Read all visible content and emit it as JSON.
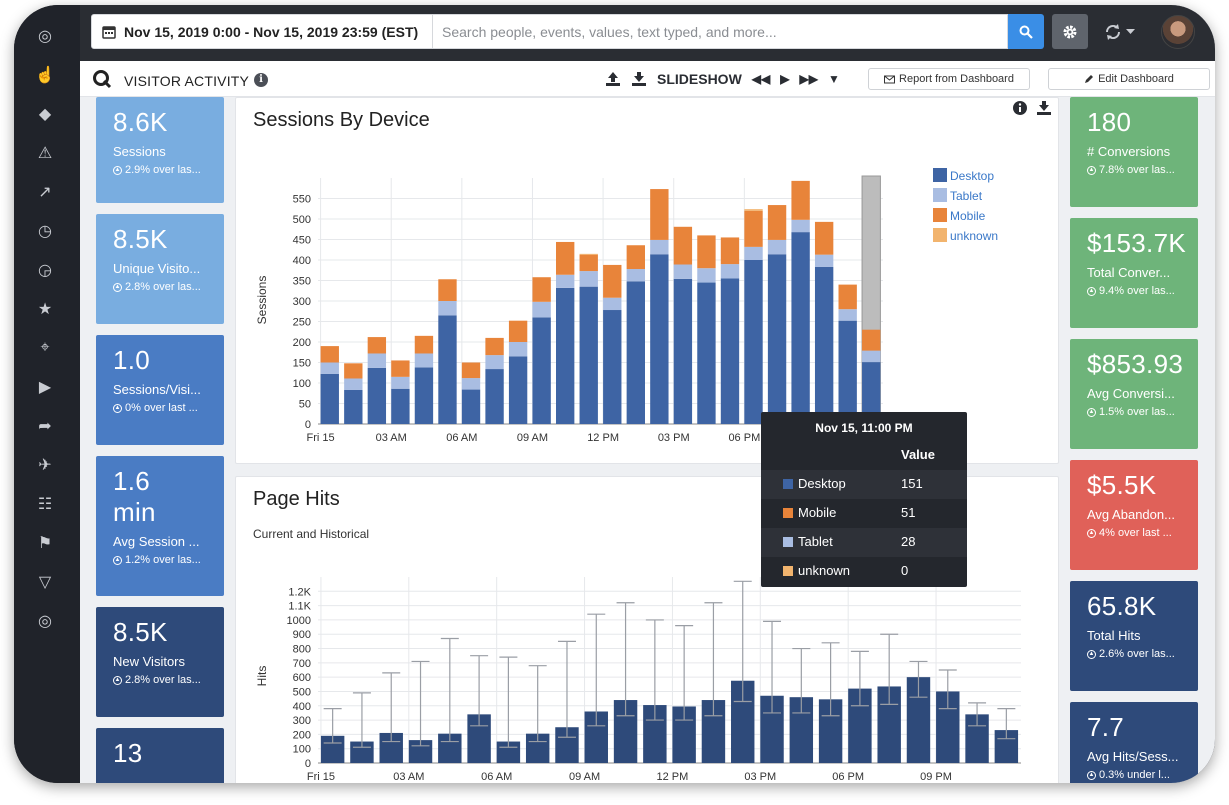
{
  "topbar": {
    "date_range": "Nov 15, 2019 0:00 - Nov 15, 2019 23:59 (EST)",
    "search_placeholder": "Search people, events, values, text typed, and more..."
  },
  "header": {
    "title": "VISITOR ACTIVITY",
    "slideshow_label": "SLIDESHOW",
    "report_button": "Report from Dashboard",
    "edit_button": "Edit Dashboard"
  },
  "left_kpis": [
    {
      "value": "8.6K",
      "label": "Sessions",
      "change": "2.9% over las...",
      "color": "#79ade0"
    },
    {
      "value": "8.5K",
      "label": "Unique Visito...",
      "change": "2.8% over las...",
      "color": "#79ade0"
    },
    {
      "value": "1.0",
      "label": "Sessions/Visi...",
      "change": "0% over last ...",
      "color": "#4a7cc4"
    },
    {
      "value": "1.6",
      "value2": "min",
      "label": "Avg Session ...",
      "change": "1.2% over las...",
      "color": "#4a7cc4"
    },
    {
      "value": "8.5K",
      "label": "New Visitors",
      "change": "2.8% over las...",
      "color": "#2e4a7a"
    },
    {
      "value": "13",
      "label": "",
      "change": "",
      "color": "#2e4a7a"
    }
  ],
  "right_kpis": [
    {
      "value": "180",
      "label": "# Conversions",
      "change": "7.8% over las...",
      "color": "#6eb47a"
    },
    {
      "value": "$153.7K",
      "label": "Total Conver...",
      "change": "9.4% over las...",
      "color": "#6eb47a"
    },
    {
      "value": "$853.93",
      "label": "Avg Conversi...",
      "change": "1.5% over las...",
      "color": "#6eb47a"
    },
    {
      "value": "$5.5K",
      "label": "Avg Abandon...",
      "change": "4% over last ...",
      "color": "#e06159"
    },
    {
      "value": "65.8K",
      "label": "Total Hits",
      "change": "2.6% over las...",
      "color": "#2e4a7a"
    },
    {
      "value": "7.7",
      "label": "Avg Hits/Sess...",
      "change": "0.3% under l...",
      "color": "#2e4a7a"
    }
  ],
  "sessions_panel": {
    "title": "Sessions By Device"
  },
  "hits_panel": {
    "title": "Page Hits",
    "subtitle": "Current and Historical"
  },
  "tooltip": {
    "title": "Nov 15, 11:00 PM",
    "value_header": "Value",
    "rows": [
      {
        "name": "Desktop",
        "value": "151",
        "color": "#3e64a4"
      },
      {
        "name": "Mobile",
        "value": "51",
        "color": "#e8843a"
      },
      {
        "name": "Tablet",
        "value": "28",
        "color": "#a9bde2"
      },
      {
        "name": "unknown",
        "value": "0",
        "color": "#f2b46e"
      }
    ]
  },
  "icons": {
    "sidebar": [
      "target-icon",
      "hand-pointer-icon",
      "tags-icon",
      "warning-icon",
      "line-chart-icon",
      "clock-icon",
      "history-icon",
      "star-icon",
      "compass-icon",
      "play-icon",
      "share-icon",
      "rocket-icon",
      "document-icon",
      "flag-icon",
      "filter-icon",
      "search-logo-icon"
    ]
  },
  "chart_data": [
    {
      "type": "bar",
      "title": "Sessions By Device",
      "ylabel": "Sessions",
      "ylim": [
        0,
        600
      ],
      "yticks": [
        0,
        50,
        100,
        150,
        200,
        250,
        300,
        350,
        400,
        450,
        500,
        550
      ],
      "xticklabels": [
        "Fri 15",
        "03 AM",
        "06 AM",
        "09 AM",
        "12 PM",
        "03 PM",
        "06 PM"
      ],
      "categories": [
        "00:00",
        "01:00",
        "02:00",
        "03:00",
        "04:00",
        "05:00",
        "06:00",
        "07:00",
        "08:00",
        "09:00",
        "10:00",
        "11:00",
        "12:00",
        "13:00",
        "14:00",
        "15:00",
        "16:00",
        "17:00",
        "18:00",
        "19:00",
        "20:00",
        "21:00",
        "22:00",
        "23:00"
      ],
      "legend_position": "top-right",
      "series": [
        {
          "name": "Desktop",
          "color": "#3e64a4",
          "values": [
            122,
            83,
            137,
            86,
            138,
            265,
            84,
            134,
            165,
            260,
            332,
            335,
            278,
            348,
            414,
            354,
            345,
            355,
            400,
            414,
            468,
            383,
            252,
            151
          ]
        },
        {
          "name": "Tablet",
          "color": "#a9bde2",
          "values": [
            28,
            28,
            35,
            29,
            34,
            35,
            28,
            34,
            35,
            38,
            32,
            38,
            30,
            30,
            35,
            35,
            35,
            35,
            32,
            35,
            30,
            30,
            28,
            28
          ]
        },
        {
          "name": "Mobile",
          "color": "#e8843a",
          "values": [
            40,
            37,
            40,
            40,
            43,
            53,
            38,
            42,
            52,
            60,
            80,
            40,
            80,
            58,
            124,
            92,
            80,
            65,
            88,
            85,
            95,
            80,
            60,
            51
          ]
        },
        {
          "name": "unknown",
          "color": "#f2b46e",
          "values": [
            0,
            0,
            0,
            0,
            0,
            0,
            0,
            0,
            0,
            0,
            0,
            2,
            0,
            0,
            0,
            0,
            0,
            0,
            4,
            0,
            0,
            0,
            0,
            0
          ]
        }
      ]
    },
    {
      "type": "bar",
      "title": "Page Hits",
      "subtitle": "Current and Historical",
      "ylabel": "Hits",
      "ylim": [
        0,
        1300
      ],
      "yticks": [
        0,
        100,
        200,
        300,
        400,
        500,
        600,
        700,
        800,
        900,
        1000,
        1100,
        1200
      ],
      "yticklabels": [
        "0",
        "100",
        "200",
        "300",
        "400",
        "500",
        "600",
        "700",
        "800",
        "900",
        "1000",
        "1.1K",
        "1.2K"
      ],
      "xticklabels": [
        "Fri 15",
        "03 AM",
        "06 AM",
        "09 AM",
        "12 PM",
        "03 PM",
        "06 PM",
        "09 PM"
      ],
      "categories": [
        "00:00",
        "01:00",
        "02:00",
        "03:00",
        "04:00",
        "05:00",
        "06:00",
        "07:00",
        "08:00",
        "09:00",
        "10:00",
        "11:00",
        "12:00",
        "13:00",
        "14:00",
        "15:00",
        "16:00",
        "17:00",
        "18:00",
        "19:00",
        "20:00",
        "21:00",
        "22:00",
        "23:00"
      ],
      "series": [
        {
          "name": "",
          "color": "#2e4a7a",
          "values": [
            190,
            150,
            210,
            160,
            205,
            340,
            150,
            205,
            250,
            360,
            440,
            405,
            395,
            440,
            575,
            470,
            460,
            445,
            520,
            535,
            600,
            500,
            340,
            230
          ]
        }
      ],
      "error_bars": {
        "low": [
          140,
          110,
          150,
          120,
          150,
          260,
          110,
          150,
          180,
          260,
          330,
          300,
          300,
          330,
          430,
          350,
          350,
          330,
          400,
          410,
          460,
          380,
          260,
          170
        ],
        "high": [
          380,
          490,
          630,
          710,
          870,
          750,
          740,
          680,
          850,
          1040,
          1120,
          1000,
          960,
          1120,
          1270,
          990,
          800,
          840,
          780,
          900,
          710,
          650,
          420,
          380
        ]
      }
    }
  ]
}
